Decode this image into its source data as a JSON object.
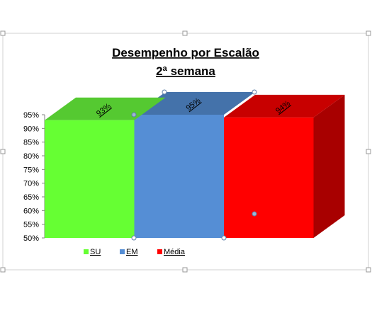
{
  "chart_data": {
    "type": "bar",
    "title_lines": [
      "Desempenho por Escalão",
      "2ª semana"
    ],
    "categories": [
      "SU",
      "EM",
      "Média"
    ],
    "values": [
      93,
      95,
      94
    ],
    "data_labels": [
      "93%",
      "95%",
      "94%"
    ],
    "yticks": [
      "50%",
      "55%",
      "60%",
      "65%",
      "70%",
      "75%",
      "80%",
      "85%",
      "90%",
      "95%"
    ],
    "ylim": [
      50,
      95
    ],
    "legend": [
      {
        "label": "SU",
        "color": "#66ff33"
      },
      {
        "label": "EM",
        "color": "#558ed5"
      },
      {
        "label": "Média",
        "color": "#ff0000"
      }
    ],
    "legend_position": "bottom-left",
    "grid": false,
    "colors": {
      "su": "#66ff33",
      "em": "#558ed5",
      "media": "#ff0000"
    }
  }
}
